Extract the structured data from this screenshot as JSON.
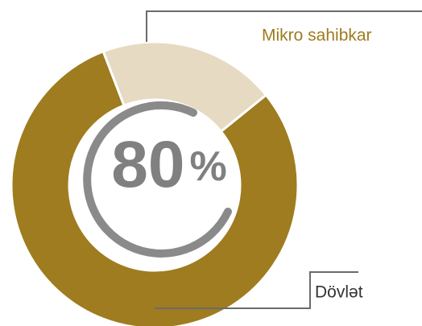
{
  "chart_data": {
    "type": "donut",
    "categories": [
      "Dövlət",
      "Mikro sahibkar"
    ],
    "values": [
      80,
      20
    ],
    "value_labels": [
      "80%",
      null
    ],
    "colors": [
      "#9e7c1f",
      "#e6dac2"
    ]
  }
}
